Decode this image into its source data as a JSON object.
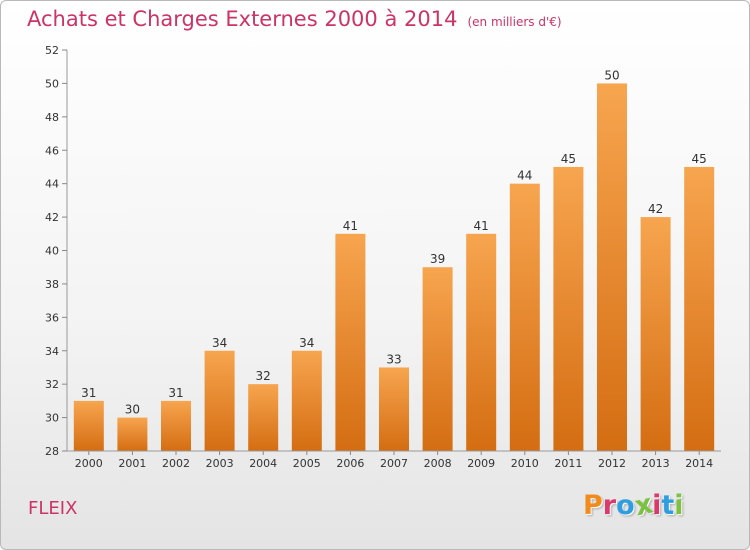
{
  "header": {
    "title": "Achats et Charges Externes 2000 à 2014",
    "subtitle": "(en milliers d'€)"
  },
  "footer": {
    "commune": "FLEIX",
    "logo_text": "Proxiti",
    "logo_colors": [
      "#f08c1e",
      "#d93a6b",
      "#2f9ee0",
      "#7cc142",
      "#d93a6b",
      "#2f9ee0",
      "#7cc142"
    ]
  },
  "chart_data": {
    "type": "bar",
    "categories": [
      "2000",
      "2001",
      "2002",
      "2003",
      "2004",
      "2005",
      "2006",
      "2007",
      "2008",
      "2009",
      "2010",
      "2011",
      "2012",
      "2013",
      "2014"
    ],
    "values": [
      31,
      30,
      31,
      34,
      32,
      34,
      41,
      33,
      39,
      41,
      44,
      45,
      50,
      42,
      45
    ],
    "title": "Achats et Charges Externes 2000 à 2014",
    "ylim": [
      28,
      52
    ],
    "yticks": [
      28,
      30,
      32,
      34,
      36,
      38,
      40,
      42,
      44,
      46,
      48,
      50,
      52
    ],
    "grid": false,
    "bar_color_top": "#f7a54f",
    "bar_color_bottom": "#d46d12"
  }
}
